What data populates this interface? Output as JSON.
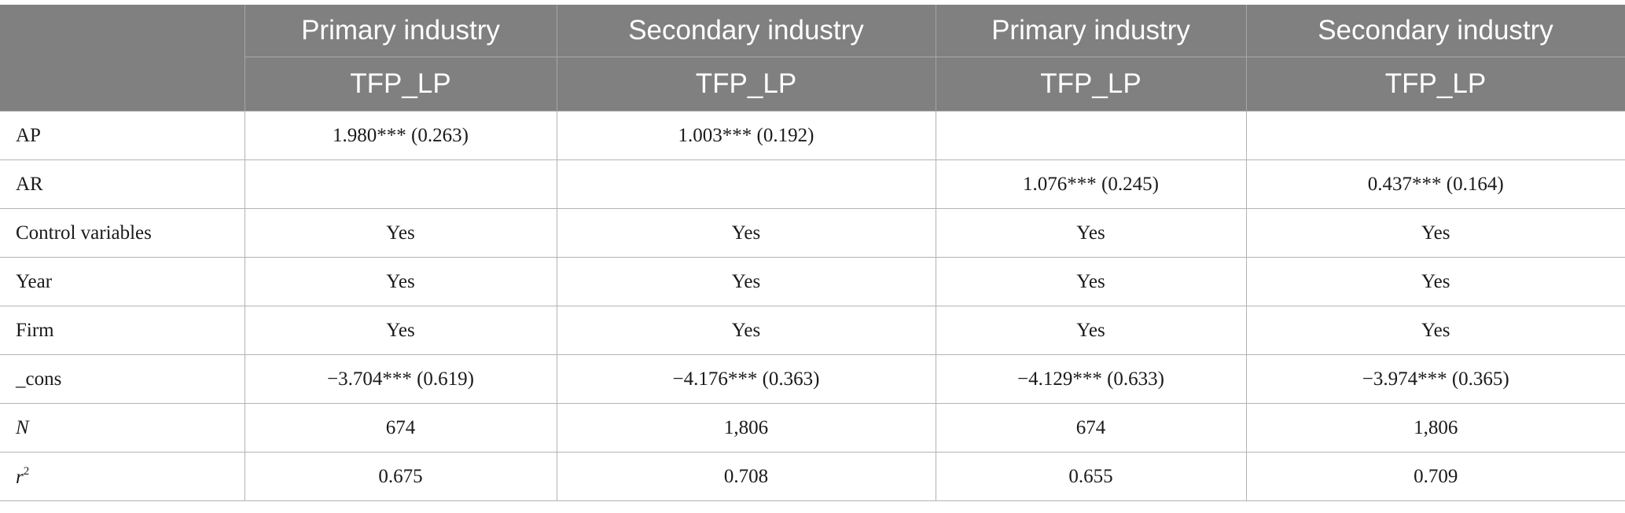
{
  "header": {
    "industry": [
      "Primary industry",
      "Secondary industry",
      "Primary industry",
      "Secondary industry"
    ],
    "dependent": [
      "TFP_LP",
      "TFP_LP",
      "TFP_LP",
      "TFP_LP"
    ]
  },
  "rows": [
    {
      "label": "AP",
      "cells": [
        "1.980*** (0.263)",
        "1.003*** (0.192)",
        "",
        ""
      ]
    },
    {
      "label": "AR",
      "cells": [
        "",
        "",
        "1.076*** (0.245)",
        "0.437*** (0.164)"
      ]
    },
    {
      "label": "Control variables",
      "cells": [
        "Yes",
        "Yes",
        "Yes",
        "Yes"
      ]
    },
    {
      "label": "Year",
      "cells": [
        "Yes",
        "Yes",
        "Yes",
        "Yes"
      ]
    },
    {
      "label": "Firm",
      "cells": [
        "Yes",
        "Yes",
        "Yes",
        "Yes"
      ]
    },
    {
      "label": "_cons",
      "cells": [
        "−3.704*** (0.619)",
        "−4.176*** (0.363)",
        "−4.129*** (0.633)",
        "−3.974*** (0.365)"
      ]
    },
    {
      "label": "N",
      "cells": [
        "674",
        "1,806",
        "674",
        "1,806"
      ]
    },
    {
      "label": "r",
      "label_sup": "2",
      "cells": [
        "0.675",
        "0.708",
        "0.655",
        "0.709"
      ]
    }
  ],
  "colors": {
    "header_bg": "#808080",
    "header_text": "#ffffff",
    "body_text": "#1a1a1a",
    "grid": "#b3b3b3"
  }
}
